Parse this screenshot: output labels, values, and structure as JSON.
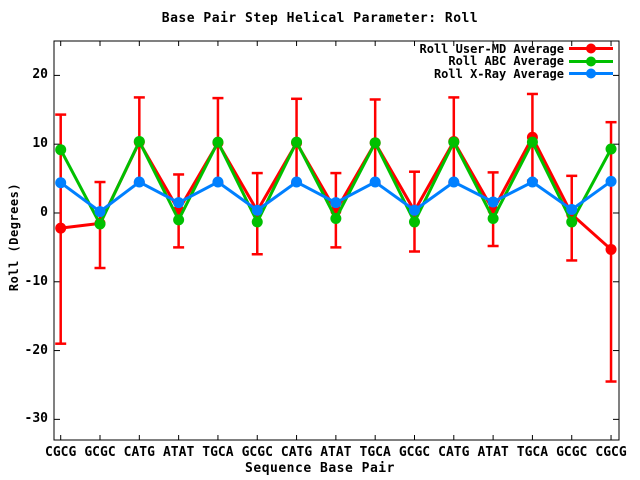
{
  "chart_data": {
    "type": "line",
    "title": "Base Pair Step Helical Parameter: Roll",
    "xlabel": "Sequence Base Pair",
    "ylabel": "Roll (Degrees)",
    "grid": false,
    "legend_position": "top-right-inside",
    "background_color": "#ffffff",
    "axis_color": "#000000",
    "ylim": [
      -33,
      25
    ],
    "yticks": [
      20,
      10,
      0,
      -10,
      -20,
      -30
    ],
    "categories": [
      "CGCG",
      "GCGC",
      "CATG",
      "ATAT",
      "TGCA",
      "GCGC",
      "CATG",
      "ATAT",
      "TGCA",
      "GCGC",
      "CATG",
      "ATAT",
      "TGCA",
      "GCGC",
      "CGCG"
    ],
    "series": [
      {
        "name": "Roll User-MD Average",
        "color": "#ff0000",
        "marker": "circle",
        "has_error_bars": true,
        "values": [
          -2.2,
          -1.5,
          10.3,
          0.4,
          10.2,
          0.3,
          10.2,
          0.3,
          10.2,
          0.3,
          10.4,
          0.4,
          11.0,
          -0.2,
          -5.3
        ],
        "error_low": [
          -19.0,
          -8.0,
          4.4,
          -5.0,
          4.3,
          -6.0,
          4.3,
          -5.0,
          4.2,
          -5.6,
          4.4,
          -4.8,
          4.7,
          -6.9,
          -24.5
        ],
        "error_high": [
          14.3,
          4.5,
          16.8,
          5.6,
          16.7,
          5.8,
          16.6,
          5.8,
          16.5,
          6.0,
          16.8,
          5.9,
          17.3,
          5.4,
          13.2
        ]
      },
      {
        "name": "Roll ABC Average",
        "color": "#00c000",
        "marker": "circle",
        "has_error_bars": false,
        "values": [
          9.2,
          -1.6,
          10.4,
          -1.0,
          10.3,
          -1.3,
          10.3,
          -0.8,
          10.2,
          -1.3,
          10.3,
          -0.8,
          10.3,
          -1.3,
          9.3
        ]
      },
      {
        "name": "Roll X-Ray Average",
        "color": "#0080ff",
        "marker": "circle",
        "has_error_bars": false,
        "values": [
          4.4,
          0.2,
          4.5,
          1.5,
          4.5,
          0.4,
          4.5,
          1.5,
          4.5,
          0.4,
          4.5,
          1.6,
          4.5,
          0.5,
          4.6
        ]
      }
    ]
  }
}
